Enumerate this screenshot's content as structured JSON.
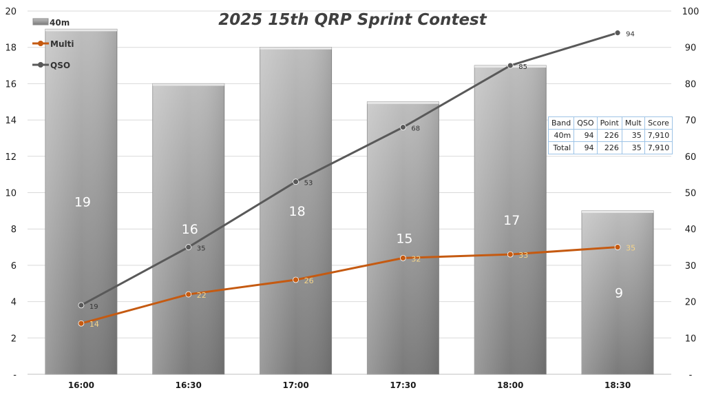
{
  "chart_data": {
    "type": "bar",
    "title": "2025 15th QRP Sprint Contest",
    "categories": [
      "16:00",
      "16:30",
      "17:00",
      "17:30",
      "18:00",
      "18:30"
    ],
    "bar_series": {
      "name": "40m",
      "axis": "left",
      "values": [
        19,
        16,
        18,
        15,
        17,
        9
      ]
    },
    "line_series": [
      {
        "name": "Multi",
        "axis": "right",
        "values": [
          14,
          22,
          26,
          32,
          33,
          35
        ],
        "color": "#c55a11"
      },
      {
        "name": "QSO",
        "axis": "right",
        "values": [
          19,
          35,
          53,
          68,
          85,
          94
        ],
        "color": "#595959"
      }
    ],
    "y_left": {
      "range": [
        0,
        20
      ],
      "step": 2,
      "zero_label": "-"
    },
    "y_right": {
      "range": [
        0,
        100
      ],
      "step": 10,
      "zero_label": "-"
    },
    "grid": true,
    "legend": "top-left",
    "colors": {
      "bar": "#a6a6a6",
      "bar_dark": "#7f7f7f"
    }
  },
  "score_table": {
    "headers": [
      "Band",
      "QSO",
      "Point",
      "Mult",
      "Score"
    ],
    "rows": [
      [
        "40m",
        "94",
        "226",
        "35",
        "7,910"
      ],
      [
        "Total",
        "94",
        "226",
        "35",
        "7,910"
      ]
    ]
  }
}
